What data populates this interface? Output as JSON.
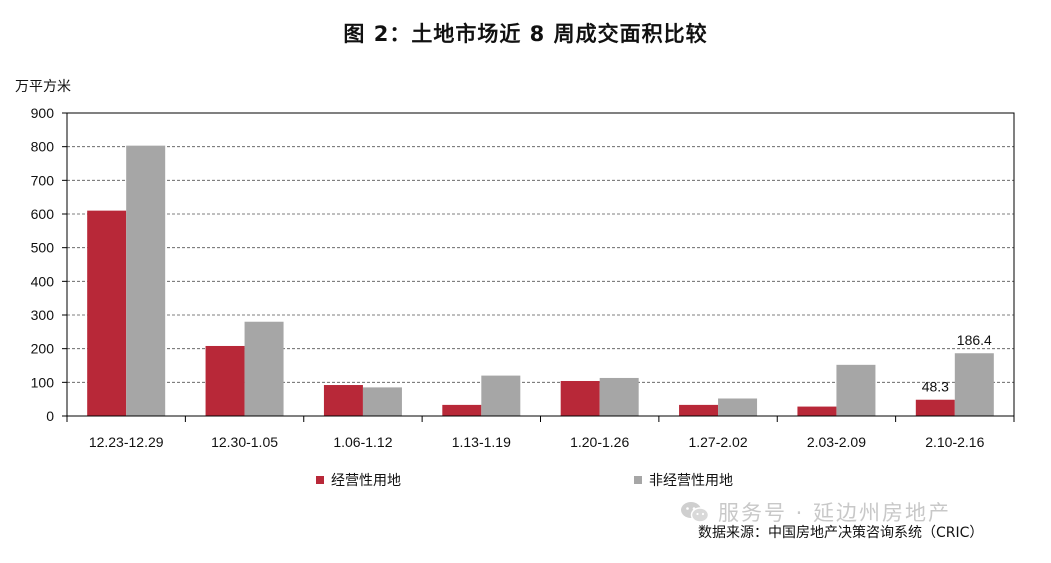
{
  "title": "图 2：土地市场近 8 周成交面积比较",
  "unit_label": "万平方米",
  "chart_data": {
    "type": "bar",
    "categories": [
      "12.23-12.29",
      "12.30-1.05",
      "1.06-1.12",
      "1.13-1.19",
      "1.20-1.26",
      "1.27-2.02",
      "2.03-2.09",
      "2.10-2.16"
    ],
    "series": [
      {
        "name": "经营性用地",
        "values": [
          610,
          208,
          92,
          33,
          104,
          33,
          28,
          48.3
        ],
        "color": "#B82838"
      },
      {
        "name": "非经营性用地",
        "values": [
          803,
          280,
          85,
          120,
          113,
          52,
          152,
          186.4
        ],
        "color": "#A6A6A6"
      }
    ],
    "data_labels": [
      {
        "series": 0,
        "index": 7,
        "text": "48.3"
      },
      {
        "series": 1,
        "index": 7,
        "text": "186.4"
      }
    ],
    "ylim": [
      0,
      900
    ],
    "yticks": [
      0,
      100,
      200,
      300,
      400,
      500,
      600,
      700,
      800,
      900
    ],
    "grid": true,
    "legend_position": "bottom"
  },
  "watermark": "服务号 · 延边州房地产",
  "source": "数据来源：中国房地产决策咨询系统（CRIC）"
}
